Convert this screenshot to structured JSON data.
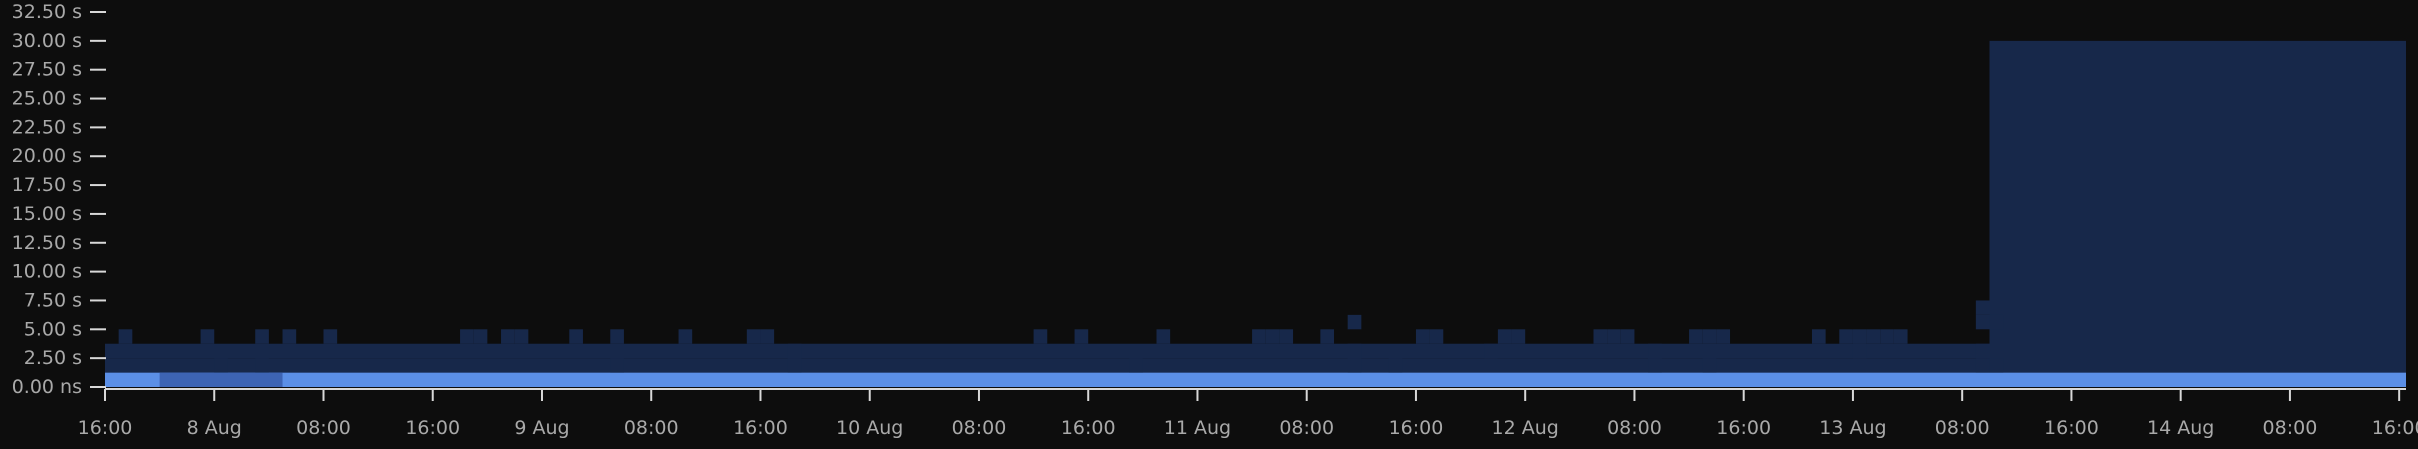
{
  "chart_data": {
    "type": "heatmap",
    "title": "",
    "xlabel": "",
    "ylabel": "",
    "y_ticks": [
      "0.00 ns",
      "2.50 s",
      "5.00 s",
      "7.50 s",
      "10.00 s",
      "12.50 s",
      "15.00 s",
      "17.50 s",
      "20.00 s",
      "22.50 s",
      "25.00 s",
      "27.50 s",
      "30.00 s",
      "32.50 s"
    ],
    "ylim": [
      0,
      32.5
    ],
    "y_unit": "s",
    "bucket_size_s": 1.25,
    "x_ticks": [
      "16:00",
      "8 Aug",
      "08:00",
      "16:00",
      "9 Aug",
      "08:00",
      "16:00",
      "10 Aug",
      "08:00",
      "16:00",
      "11 Aug",
      "08:00",
      "16:00",
      "12 Aug",
      "08:00",
      "16:00",
      "13 Aug",
      "08:00",
      "16:00",
      "14 Aug",
      "08:00",
      "16:00"
    ],
    "x_range_hours": [
      0,
      168.5
    ],
    "x_tick_step_hours": 8,
    "time_bucket_hours": 1,
    "grid": false,
    "legend": "none",
    "colors": {
      "background": "#0d0d0d",
      "low_density": "#17284a",
      "medium_density": "#3d64b4",
      "high_density": "#5b8fe6",
      "tick_text": "#a9a9a9",
      "axis": "#d8d8d8"
    },
    "series": [
      {
        "description_range": "0 to 1.25 s bucket, every hour (high density)",
        "bucket_low_s": 0,
        "bucket_high_s": 1.25,
        "density": "high",
        "from_hour": 0,
        "to_hour": 168.5
      },
      {
        "bucket_low_s": 2.5,
        "bucket_high_s": 3.75,
        "density": "low",
        "from_hour": 0,
        "to_hour": 138
      },
      {
        "bucket_low_s": 1.25,
        "bucket_high_s": 2.5,
        "density": "low",
        "from_hour": 0,
        "to_hour": 138
      },
      {
        "bucket_low_s": 1.25,
        "bucket_high_s": 30,
        "density": "low",
        "from_hour": 138,
        "to_hour": 168.5
      }
    ],
    "sparse_cells_hours_and_bucket": [
      [
        1,
        3
      ],
      [
        7,
        3
      ],
      [
        11,
        3
      ],
      [
        13,
        3
      ],
      [
        16,
        3
      ],
      [
        26,
        3
      ],
      [
        27,
        3
      ],
      [
        29,
        3
      ],
      [
        30,
        3
      ],
      [
        34,
        3
      ],
      [
        37,
        3
      ],
      [
        42,
        3
      ],
      [
        47,
        3
      ],
      [
        48,
        3
      ],
      [
        68,
        3
      ],
      [
        71,
        3
      ],
      [
        77,
        3
      ],
      [
        84,
        3
      ],
      [
        85,
        3
      ],
      [
        86,
        3
      ],
      [
        89,
        3
      ],
      [
        96,
        3
      ],
      [
        97,
        3
      ],
      [
        102,
        3
      ],
      [
        103,
        3
      ],
      [
        109,
        3
      ],
      [
        110,
        3
      ],
      [
        111,
        3
      ],
      [
        116,
        3
      ],
      [
        117,
        3
      ],
      [
        118,
        3
      ],
      [
        125,
        3
      ],
      [
        127,
        3
      ],
      [
        128,
        3
      ],
      [
        129,
        3
      ],
      [
        130,
        3
      ],
      [
        131,
        3
      ],
      [
        8,
        1
      ],
      [
        11,
        1
      ],
      [
        37,
        1
      ],
      [
        50,
        1
      ],
      [
        50,
        2
      ],
      [
        75,
        1
      ],
      [
        91,
        4
      ],
      [
        91,
        2
      ],
      [
        91,
        1
      ],
      [
        94,
        1
      ],
      [
        101,
        2
      ],
      [
        113,
        2
      ],
      [
        113,
        1
      ],
      [
        117,
        1
      ],
      [
        128,
        2
      ],
      [
        137,
        4
      ],
      [
        137,
        5
      ],
      [
        137,
        2
      ],
      [
        137,
        1
      ],
      [
        138,
        1
      ],
      [
        138,
        4
      ]
    ]
  }
}
